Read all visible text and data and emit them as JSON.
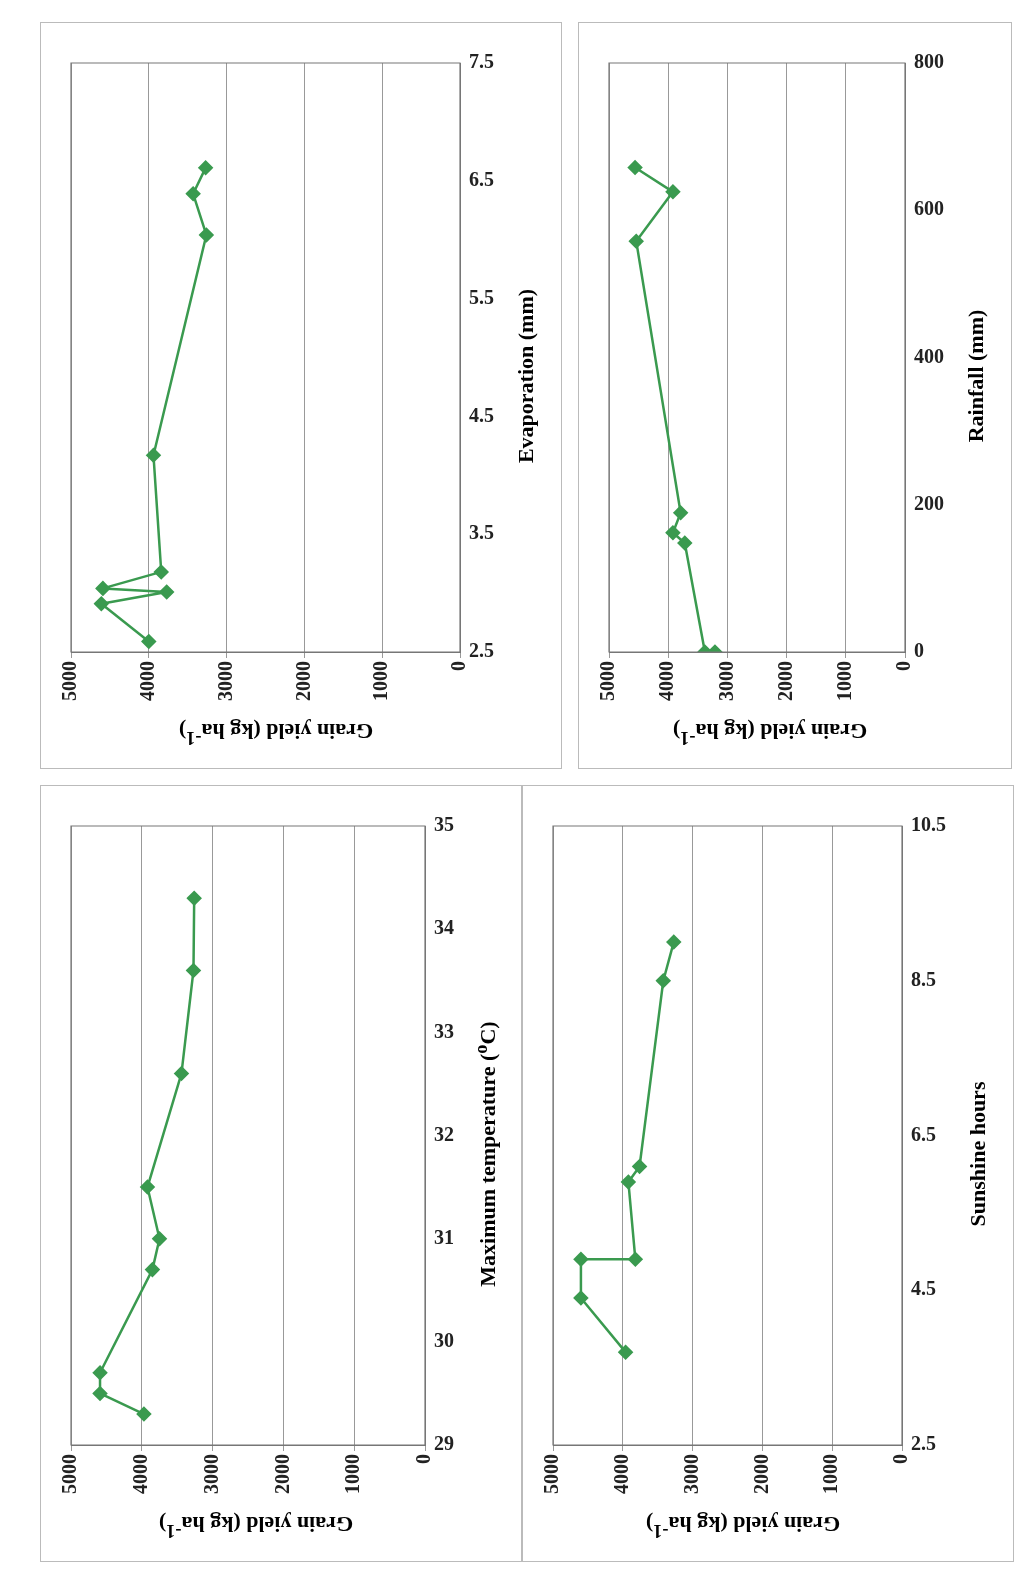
{
  "chart_data": [
    {
      "type": "line",
      "ylabel": "Maximum temperature ($^{o}$C)",
      "xlabel": "Grain yield (kg ha$^{-1}$)",
      "x": [
        3970,
        4590,
        4590,
        3850,
        3750,
        3920,
        3440,
        3270,
        3260
      ],
      "series": [
        {
          "color": "#3a9a4f",
          "values": [
            29.3,
            29.5,
            29.7,
            30.7,
            31.0,
            31.5,
            32.6,
            33.6,
            34.3
          ]
        }
      ],
      "ylim": [
        29,
        35
      ],
      "yticks": [
        29,
        30,
        31,
        32,
        33,
        34,
        35
      ],
      "xlim": [
        5000,
        0
      ],
      "xticks": [
        5000,
        4000,
        3000,
        2000,
        1000,
        0
      ],
      "grid": "x",
      "marker": "diamond",
      "legend": false
    },
    {
      "type": "line",
      "ylabel": "Evaporation (mm)",
      "xlabel": "Grain yield (kg ha$^{-1}$)",
      "x": [
        4000,
        4610,
        3770,
        4590,
        3840,
        3940,
        3260,
        3430,
        3270
      ],
      "series": [
        {
          "color": "#3a9a4f",
          "values": [
            2.59,
            2.91,
            3.01,
            3.04,
            3.18,
            4.17,
            6.04,
            6.39,
            6.61
          ]
        }
      ],
      "ylim": [
        2.5,
        7.5
      ],
      "yticks": [
        2.5,
        3.5,
        4.5,
        5.5,
        6.5,
        7.5
      ],
      "xlim": [
        5000,
        0
      ],
      "xticks": [
        5000,
        4000,
        3000,
        2000,
        1000,
        0
      ],
      "grid": "x",
      "marker": "diamond",
      "legend": false
    },
    {
      "type": "line",
      "ylabel": "Sunshine hours",
      "xlabel": "Grain yield (kg ha$^{-1}$)",
      "x": [
        3960,
        4600,
        4600,
        3820,
        3920,
        3760,
        3420,
        3270
      ],
      "series": [
        {
          "color": "#3a9a4f",
          "values": [
            3.7,
            4.4,
            4.9,
            4.9,
            5.9,
            6.1,
            8.5,
            9.0
          ]
        }
      ],
      "ylim": [
        2.5,
        10.5
      ],
      "yticks": [
        2.5,
        4.5,
        6.5,
        8.5,
        10.5
      ],
      "xlim": [
        5000,
        0
      ],
      "xticks": [
        5000,
        4000,
        3000,
        2000,
        1000,
        0
      ],
      "grid": "x",
      "marker": "diamond",
      "legend": false
    },
    {
      "type": "line",
      "ylabel": "Rainfall (mm)",
      "xlabel": "Grain yield (kg ha$^{-1}$)",
      "x": [
        3210,
        3380,
        3720,
        3920,
        3790,
        4540,
        3920,
        4560
      ],
      "series": [
        {
          "color": "#3a9a4f",
          "values": [
            0,
            0,
            148,
            162,
            189,
            558,
            625,
            658
          ]
        }
      ],
      "ylim": [
        0,
        800
      ],
      "yticks": [
        0,
        200,
        400,
        600,
        800
      ],
      "xlim": [
        5000,
        0
      ],
      "xticks": [
        5000,
        4000,
        3000,
        2000,
        1000,
        0
      ],
      "grid": "x",
      "marker": "diamond",
      "legend": false
    }
  ]
}
